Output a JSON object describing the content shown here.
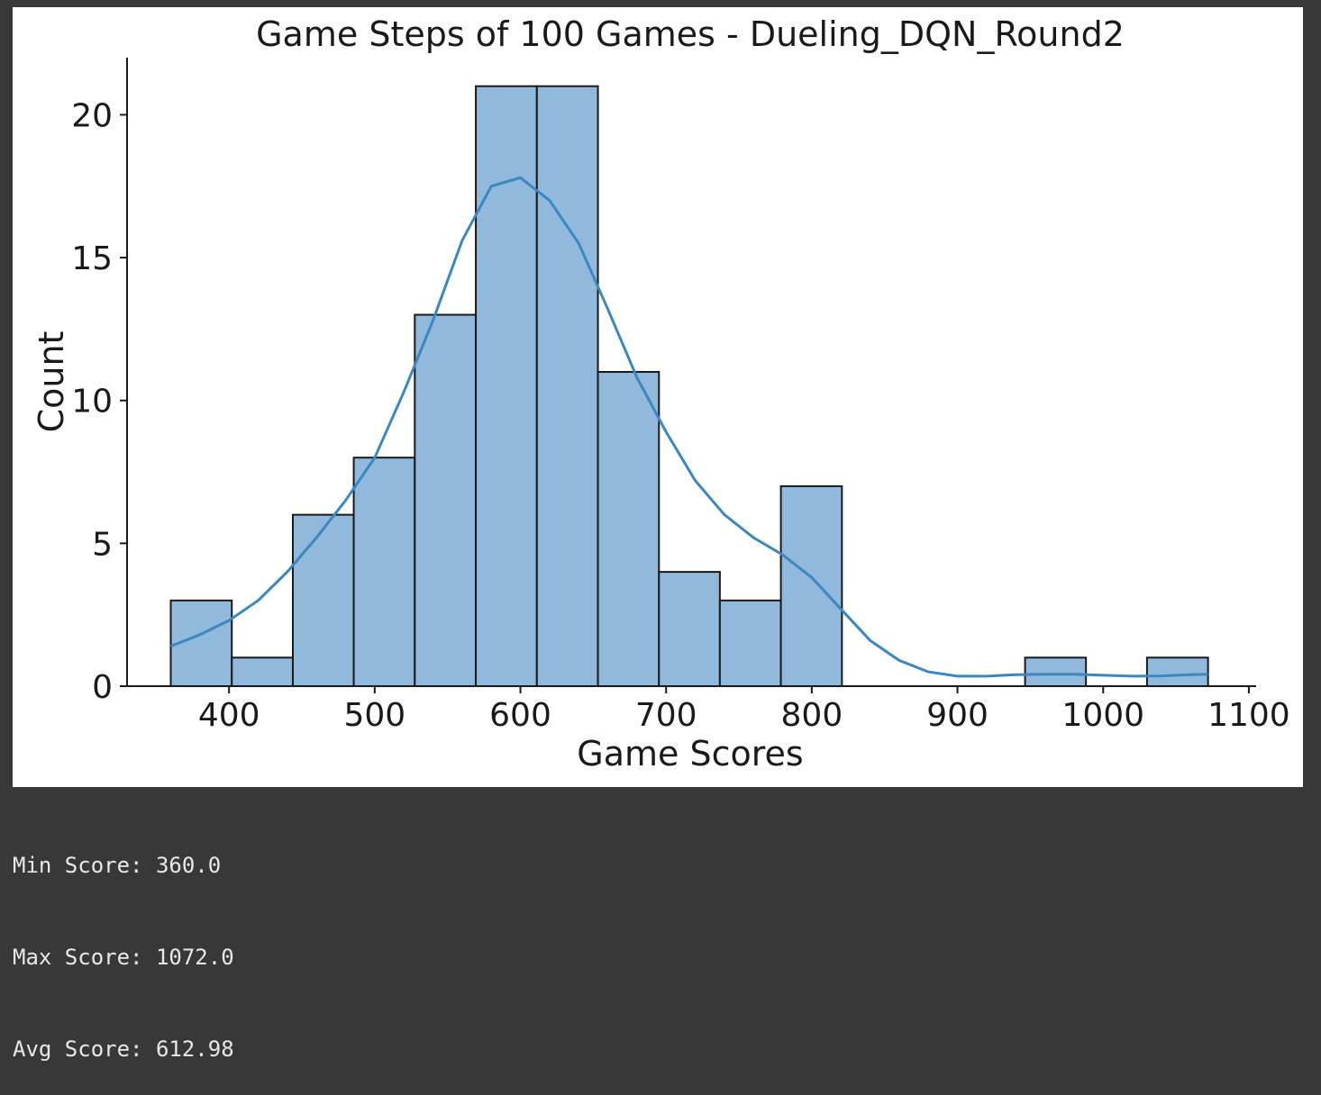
{
  "chart_data": {
    "type": "bar",
    "subtype": "histogram-with-kde",
    "title": "Game Steps of 100 Games - Dueling_DQN_Round2",
    "xlabel": "Game Scores",
    "ylabel": "Count",
    "xlim": [
      330,
      1105
    ],
    "ylim": [
      0,
      22
    ],
    "xticks": [
      400,
      500,
      600,
      700,
      800,
      900,
      1000,
      1100
    ],
    "yticks": [
      0,
      5,
      10,
      15,
      20
    ],
    "bin_edges": [
      360,
      401.9,
      443.8,
      485.6,
      527.5,
      569.4,
      611.3,
      653.2,
      695.1,
      736.9,
      778.8,
      820.7,
      862.6,
      904.5,
      946.4,
      988.2,
      1030.1,
      1072
    ],
    "values": [
      3,
      1,
      6,
      8,
      13,
      21,
      21,
      11,
      4,
      3,
      7,
      0,
      0,
      0,
      1,
      0,
      1
    ],
    "bar_color": "#90b9dc",
    "edge_color": "#1a1a1a",
    "kde": {
      "color": "#3b88c0",
      "x": [
        360,
        380,
        400,
        420,
        440,
        460,
        480,
        500,
        520,
        540,
        560,
        580,
        600,
        620,
        640,
        660,
        680,
        700,
        720,
        740,
        760,
        780,
        800,
        820,
        840,
        860,
        880,
        900,
        920,
        940,
        960,
        980,
        1000,
        1020,
        1040,
        1060,
        1072
      ],
      "y": [
        1.4,
        1.8,
        2.3,
        3.0,
        4.0,
        5.2,
        6.5,
        8.0,
        10.3,
        12.8,
        15.6,
        17.5,
        17.8,
        17.0,
        15.5,
        13.2,
        10.8,
        8.9,
        7.2,
        6.0,
        5.2,
        4.6,
        3.8,
        2.7,
        1.6,
        0.9,
        0.5,
        0.35,
        0.35,
        0.4,
        0.42,
        0.42,
        0.38,
        0.35,
        0.36,
        0.4,
        0.42
      ]
    }
  },
  "output": {
    "lines": [
      "Min Score: 360.0",
      "Max Score: 1072.0",
      "Avg Score: 612.98"
    ]
  }
}
